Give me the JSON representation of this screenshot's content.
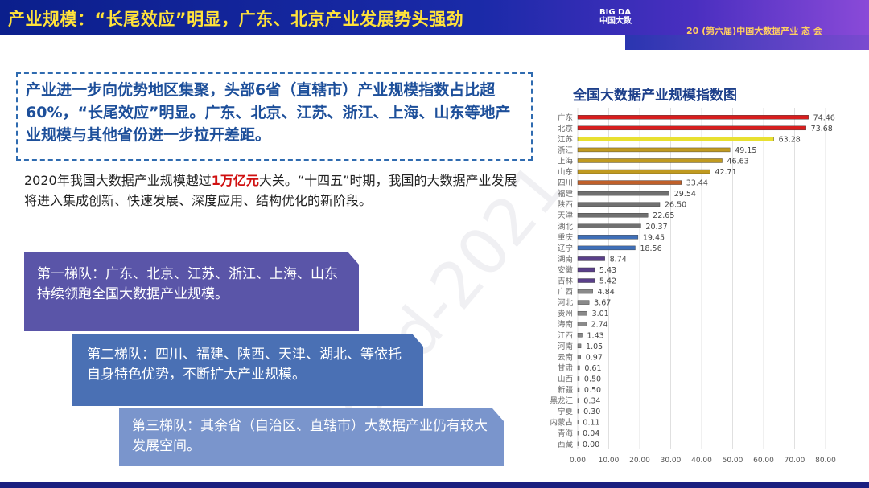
{
  "header": {
    "title": "产业规模：“长尾效应”明显，广东、北京产业发展势头强劲",
    "logo_text": "BIG DA",
    "logo_sub": "中国大数",
    "conference": "20 (第六届)中国大数据产业 态 会"
  },
  "summary_box": "产业进一步向优势地区集聚，头部6省（直辖市）产业规模指数占比超60%，“长尾效应”明显。广东、北京、江苏、浙江、上海、山东等地产业规模与其他省份进一步拉开差距。",
  "paragraph": {
    "before": "2020年我国大数据产业规模越过",
    "highlight": "1万亿元",
    "after": "大关。“十四五”时期，我国的大数据产业发展将进入集成创新、快速发展、深度应用、结构优化的新阶段。"
  },
  "tiers": [
    "第一梯队：广东、北京、江苏、浙江、上海、山东持续领跑全国大数据产业规模。",
    "第二梯队：四川、福建、陕西、天津、湖北、等依托自身特色优势，不断扩大产业规模。",
    "第三梯队：其余省（自治区、直辖市）大数据产业仍有较大发展空间。"
  ],
  "chart_data": {
    "type": "bar",
    "orientation": "horizontal",
    "title": "全国大数据产业规模指数图",
    "categories": [
      "广东",
      "北京",
      "江苏",
      "浙江",
      "上海",
      "山东",
      "四川",
      "福建",
      "陕西",
      "天津",
      "湖北",
      "重庆",
      "辽宁",
      "湖南",
      "安徽",
      "吉林",
      "广西",
      "河北",
      "贵州",
      "海南",
      "江西",
      "河南",
      "云南",
      "甘肃",
      "山西",
      "新疆",
      "黑龙江",
      "宁夏",
      "内蒙古",
      "青海",
      "西藏"
    ],
    "values": [
      74.46,
      73.68,
      63.28,
      49.15,
      46.63,
      42.71,
      33.44,
      29.54,
      26.5,
      22.65,
      20.37,
      19.45,
      18.56,
      8.74,
      5.43,
      5.42,
      4.84,
      3.67,
      3.01,
      2.74,
      1.43,
      1.05,
      0.97,
      0.61,
      0.5,
      0.5,
      0.34,
      0.3,
      0.11,
      0.04,
      0.0
    ],
    "colors": [
      "#d81e1e",
      "#d81e1e",
      "#e8e030",
      "#c09a20",
      "#c09a20",
      "#c09a20",
      "#c0602a",
      "#707070",
      "#707070",
      "#707070",
      "#707070",
      "#3f6fb8",
      "#3f6fb8",
      "#5a3f8a",
      "#5a3f8a",
      "#5a3f8a",
      "#8a8a8a",
      "#8a8a8a",
      "#8a8a8a",
      "#8a8a8a",
      "#8a8a8a",
      "#8a8a8a",
      "#8a8a8a",
      "#8a8a8a",
      "#8a8a8a",
      "#8a8a8a",
      "#8a8a8a",
      "#8a8a8a",
      "#8a8a8a",
      "#8a8a8a",
      "#8a8a8a"
    ],
    "xlim": [
      0,
      80
    ],
    "xticks": [
      "0.00",
      "10.00",
      "20.00",
      "30.00",
      "40.00",
      "50.00",
      "60.00",
      "70.00",
      "80.00"
    ],
    "grid": true,
    "data_labels": true
  }
}
